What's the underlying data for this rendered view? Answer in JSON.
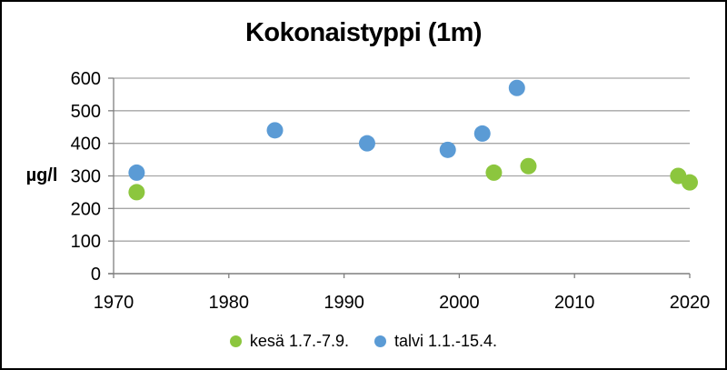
{
  "chart_data": {
    "type": "scatter",
    "title": "Kokonaistyppi (1m)",
    "ylabel": "µg/l",
    "xlabel": "",
    "xlim": [
      1970,
      2020
    ],
    "ylim": [
      0,
      600
    ],
    "x_ticks": [
      1970,
      1980,
      1990,
      2000,
      2010,
      2020
    ],
    "y_ticks": [
      0,
      100,
      200,
      300,
      400,
      500,
      600
    ],
    "grid": "horizontal",
    "legend_position": "bottom-center",
    "series": [
      {
        "name": "kesä 1.7.-7.9.",
        "color": "#8CC63E",
        "points": [
          {
            "x": 1972,
            "y": 250
          },
          {
            "x": 2003,
            "y": 310
          },
          {
            "x": 2006,
            "y": 330
          },
          {
            "x": 2019,
            "y": 300
          },
          {
            "x": 2020,
            "y": 280
          }
        ]
      },
      {
        "name": "talvi 1.1.-15.4.",
        "color": "#5B9BD5",
        "points": [
          {
            "x": 1972,
            "y": 310
          },
          {
            "x": 1984,
            "y": 440
          },
          {
            "x": 1992,
            "y": 400
          },
          {
            "x": 1999,
            "y": 380
          },
          {
            "x": 2002,
            "y": 430
          },
          {
            "x": 2005,
            "y": 570
          }
        ]
      }
    ],
    "colors": {
      "gridline": "#A6A6A6",
      "axis": "#7F7F7F",
      "text": "#000000",
      "frame": "#000000",
      "background": "#FFFFFF"
    }
  }
}
